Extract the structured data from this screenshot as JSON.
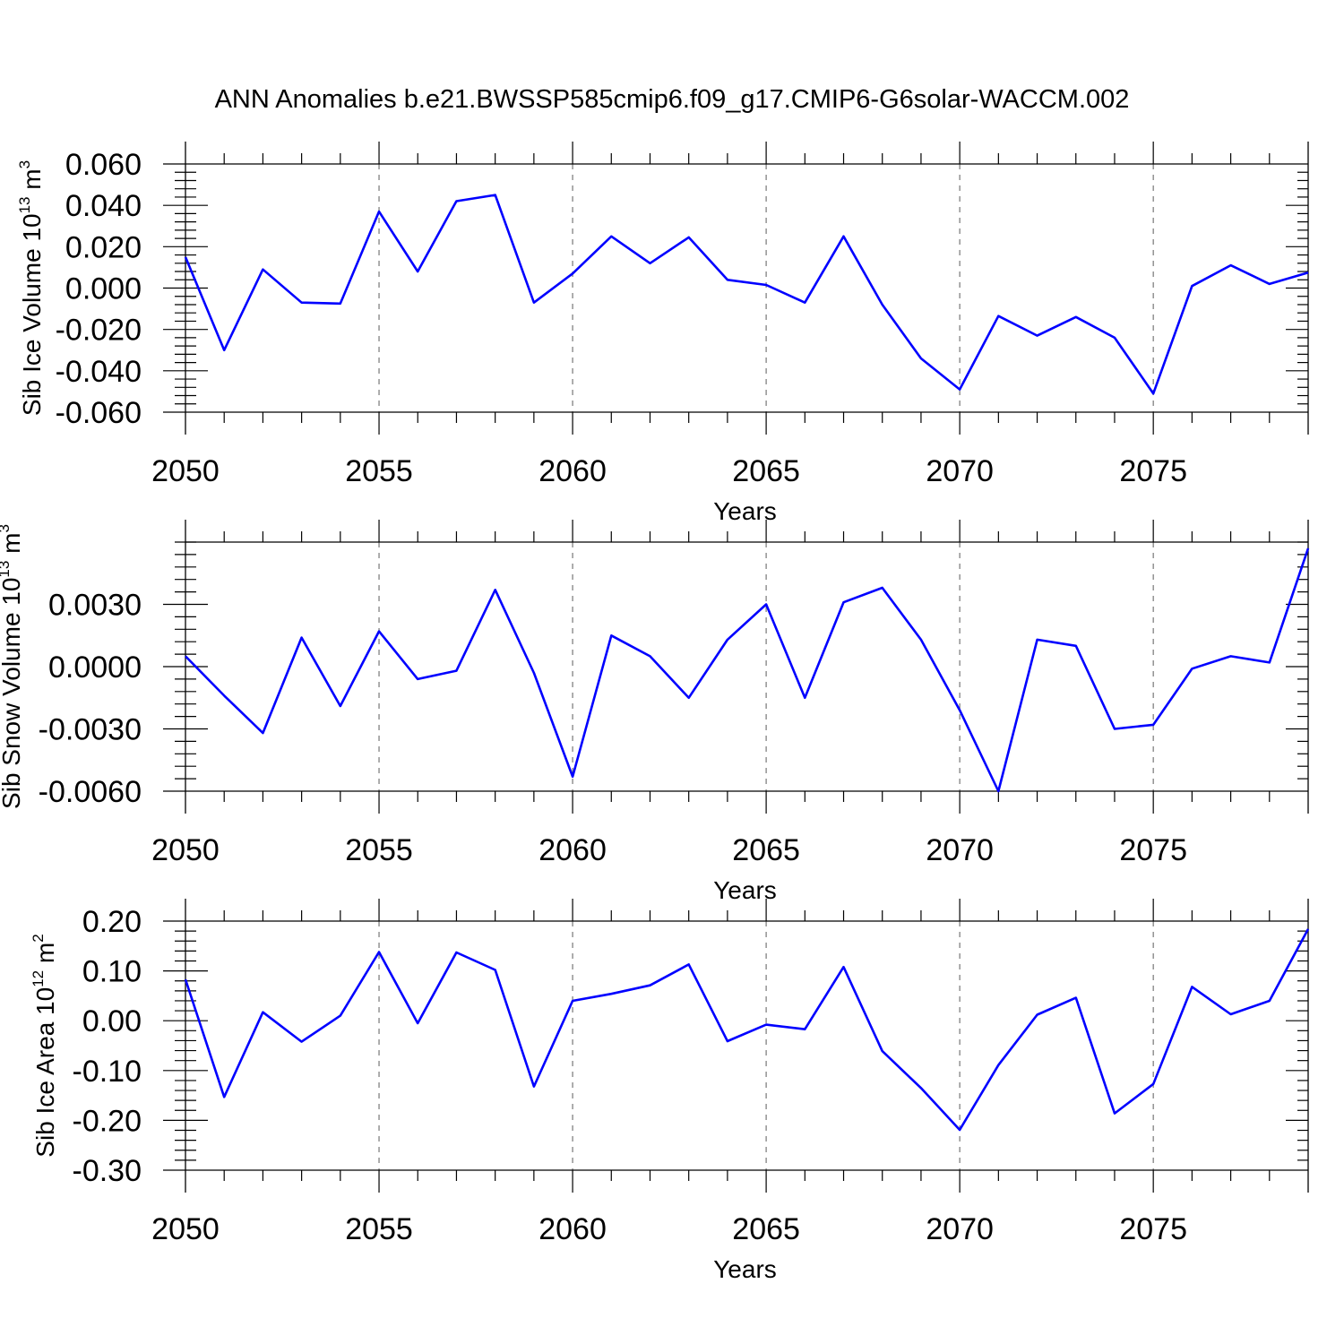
{
  "title": "ANN Anomalies b.e21.BWSSP585cmip6.f09_g17.CMIP6-G6solar-WACCM.002",
  "colors": {
    "line": "#0000ff",
    "frame": "#000000",
    "grid": "#777777"
  },
  "chart_data": [
    {
      "type": "line",
      "xlabel": "Years",
      "ylabel": {
        "text": "Sib Ice Volume 10",
        "exp": "13",
        "unit": " m",
        "unit_exp": "3"
      },
      "xlim": [
        2050,
        2079
      ],
      "x_ticks": [
        2050,
        2055,
        2060,
        2065,
        2070,
        2075
      ],
      "ylim": [
        -0.06,
        0.06
      ],
      "y_ticks": [
        -0.06,
        -0.04,
        -0.02,
        0.0,
        0.02,
        0.04,
        0.06
      ],
      "y_tick_labels": [
        "-0.060",
        "-0.040",
        "-0.020",
        "0.000",
        "0.020",
        "0.040",
        "0.060"
      ],
      "x": [
        2050,
        2051,
        2052,
        2053,
        2054,
        2055,
        2056,
        2057,
        2058,
        2059,
        2060,
        2061,
        2062,
        2063,
        2064,
        2065,
        2066,
        2067,
        2068,
        2069,
        2070,
        2071,
        2072,
        2073,
        2074,
        2075,
        2076,
        2077,
        2078,
        2079
      ],
      "values": [
        0.015,
        -0.03,
        0.009,
        -0.007,
        -0.0075,
        0.037,
        0.008,
        0.042,
        0.045,
        -0.007,
        0.007,
        0.025,
        0.012,
        0.0245,
        0.004,
        0.0015,
        -0.007,
        0.025,
        -0.008,
        -0.034,
        -0.049,
        -0.0135,
        -0.023,
        -0.014,
        -0.024,
        -0.051,
        0.001,
        0.011,
        0.002,
        0.0075
      ],
      "grid": "vertical dashed at major x ticks"
    },
    {
      "type": "line",
      "xlabel": "Years",
      "ylabel": {
        "text": "Sib Snow Volume 10",
        "exp": "13",
        "unit": " m",
        "unit_exp": "3"
      },
      "xlim": [
        2050,
        2079
      ],
      "x_ticks": [
        2050,
        2055,
        2060,
        2065,
        2070,
        2075
      ],
      "ylim": [
        -0.006,
        0.006
      ],
      "y_ticks": [
        -0.006,
        -0.003,
        0.0,
        0.003
      ],
      "y_tick_labels": [
        "-0.0060",
        "-0.0030",
        "0.0000",
        "0.0030"
      ],
      "x": [
        2050,
        2051,
        2052,
        2053,
        2054,
        2055,
        2056,
        2057,
        2058,
        2059,
        2060,
        2061,
        2062,
        2063,
        2064,
        2065,
        2066,
        2067,
        2068,
        2069,
        2070,
        2071,
        2072,
        2073,
        2074,
        2075,
        2076,
        2077,
        2078,
        2079
      ],
      "values": [
        0.0005,
        -0.0014,
        -0.0032,
        0.0014,
        -0.0019,
        0.0017,
        -0.0006,
        -0.0002,
        0.0037,
        -0.0003,
        -0.0053,
        0.0015,
        0.0005,
        -0.0015,
        0.0013,
        0.003,
        -0.0015,
        0.0031,
        0.0038,
        0.0013,
        -0.0021,
        -0.006,
        0.0013,
        0.001,
        -0.003,
        -0.0028,
        -0.0001,
        0.0005,
        0.0002,
        0.0057
      ],
      "grid": "vertical dashed at major x ticks"
    },
    {
      "type": "line",
      "xlabel": "Years",
      "ylabel": {
        "text": "Sib Ice Area 10",
        "exp": "12",
        "unit": " m",
        "unit_exp": "2"
      },
      "xlim": [
        2050,
        2079
      ],
      "x_ticks": [
        2050,
        2055,
        2060,
        2065,
        2070,
        2075
      ],
      "ylim": [
        -0.3,
        0.2
      ],
      "y_ticks": [
        -0.3,
        -0.2,
        -0.1,
        0.0,
        0.1,
        0.2
      ],
      "y_tick_labels": [
        "-0.30",
        "-0.20",
        "-0.10",
        "0.00",
        "0.10",
        "0.20"
      ],
      "x": [
        2050,
        2051,
        2052,
        2053,
        2054,
        2055,
        2056,
        2057,
        2058,
        2059,
        2060,
        2061,
        2062,
        2063,
        2064,
        2065,
        2066,
        2067,
        2068,
        2069,
        2070,
        2071,
        2072,
        2073,
        2074,
        2075,
        2076,
        2077,
        2078,
        2079
      ],
      "values": [
        0.083,
        -0.153,
        0.017,
        -0.042,
        0.01,
        0.138,
        -0.005,
        0.137,
        0.102,
        -0.132,
        0.04,
        0.054,
        0.071,
        0.113,
        -0.041,
        -0.008,
        -0.017,
        0.108,
        -0.061,
        -0.135,
        -0.219,
        -0.089,
        0.012,
        0.046,
        -0.186,
        -0.127,
        0.068,
        0.013,
        0.04,
        0.184
      ],
      "grid": "vertical dashed at major x ticks"
    }
  ]
}
